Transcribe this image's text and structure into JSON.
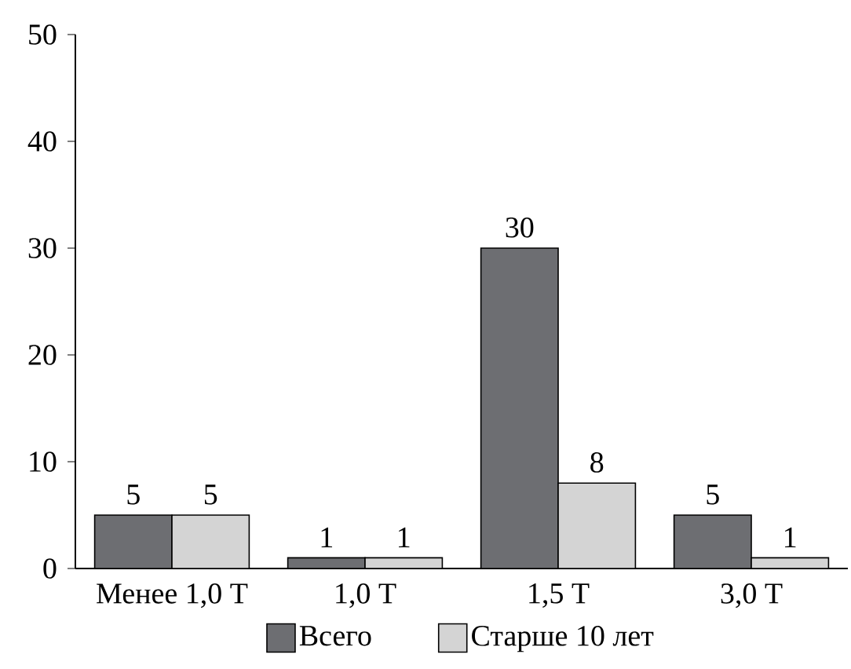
{
  "chart_data": {
    "type": "bar",
    "categories": [
      "Менее 1,0 Т",
      "1,0 Т",
      "1,5 Т",
      "3,0 Т"
    ],
    "series": [
      {
        "name": "Всего",
        "color": "#6d6e72",
        "values": [
          5,
          1,
          30,
          5
        ]
      },
      {
        "name": "Старше 10 лет",
        "color": "#d4d4d4",
        "values": [
          5,
          1,
          8,
          1
        ]
      }
    ],
    "ylim": [
      0,
      50
    ],
    "yticks": [
      0,
      10,
      20,
      30,
      40,
      50
    ],
    "data_labels": true,
    "legend": "bottom",
    "grid": false
  }
}
